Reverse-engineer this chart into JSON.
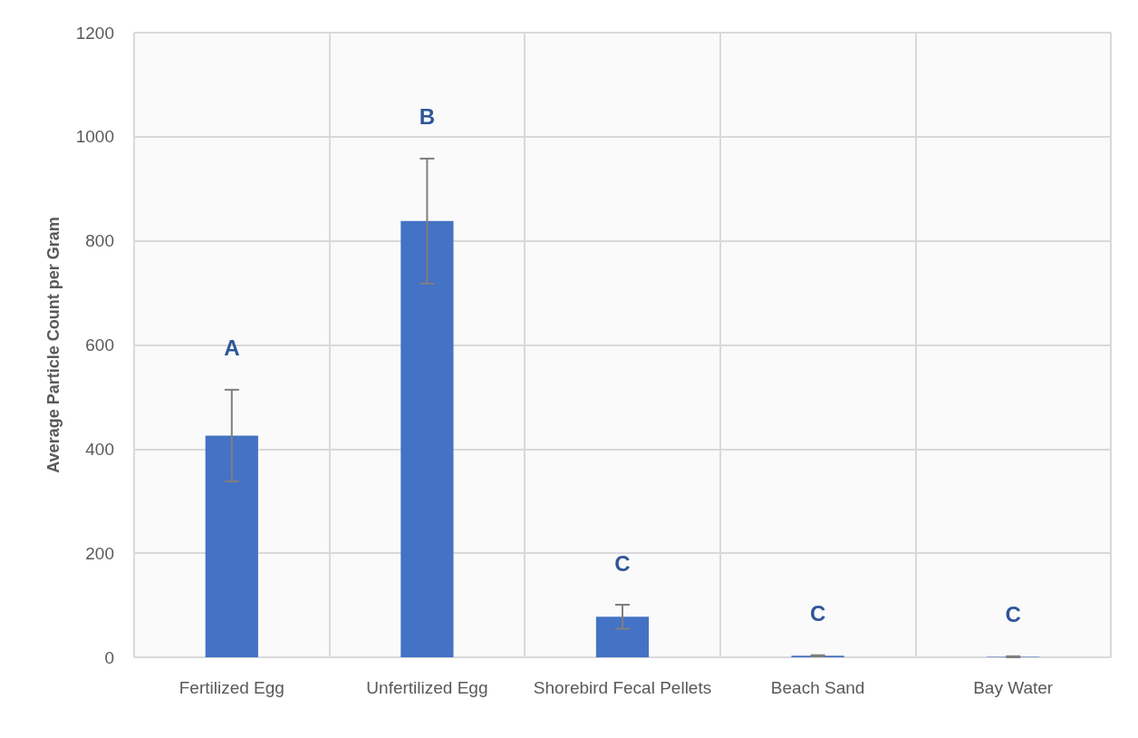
{
  "chart_data": {
    "type": "bar",
    "ylabel": "Average Particle Count per Gram",
    "categories": [
      "Fertilized Egg",
      "Unfertilized Egg",
      "Shorebird Fecal Pellets",
      "Beach Sand",
      "Bay Water"
    ],
    "values": [
      426,
      838,
      78,
      3,
      1
    ],
    "errors": [
      88,
      120,
      23,
      1,
      1
    ],
    "color": "#4472c4",
    "ylim": [
      0,
      1200
    ],
    "yticks": [
      0,
      200,
      400,
      600,
      800,
      1000,
      1200
    ],
    "grid": true,
    "annotations": [
      "A",
      "B",
      "C",
      "C",
      "C"
    ]
  }
}
